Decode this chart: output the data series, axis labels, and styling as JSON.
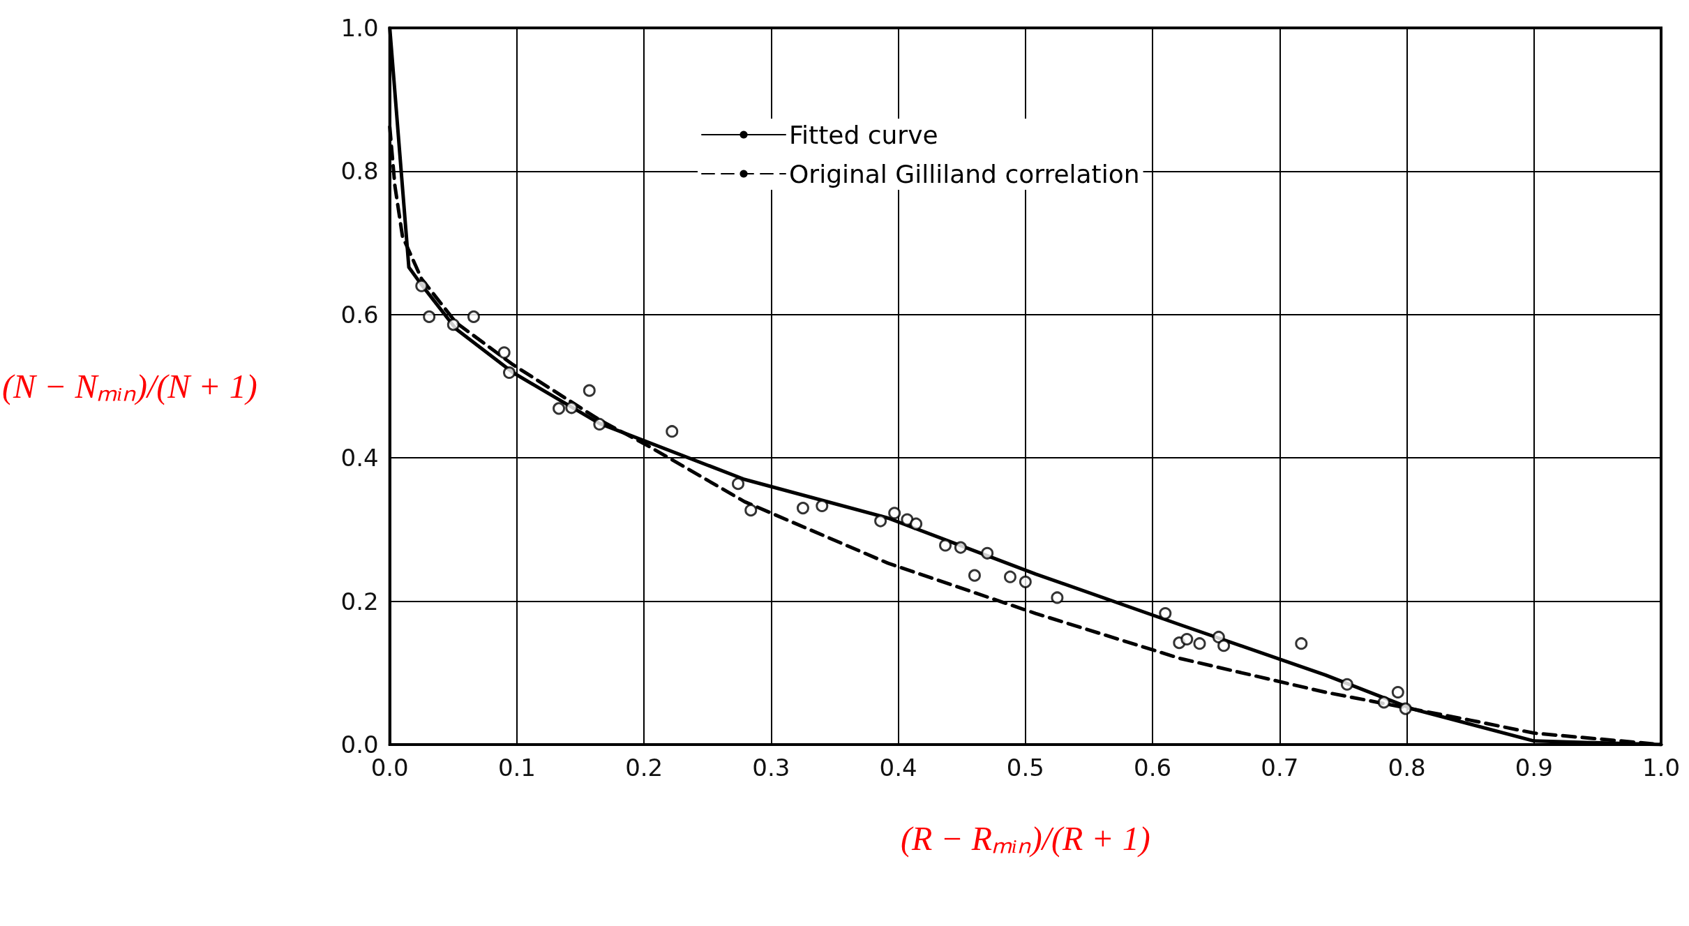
{
  "chart_data": {
    "type": "line",
    "xlabel": "(R − Rₘᵢₙ)/(R + 1)",
    "ylabel": "(N − Nₘᵢₙ)/(N + 1)",
    "xlim": [
      0,
      1
    ],
    "ylim": [
      0,
      1
    ],
    "xticks": [
      {
        "value": 0,
        "label": "0.0"
      },
      0.1,
      0.2,
      0.3,
      0.4,
      0.5,
      0.6,
      0.7,
      0.8,
      0.9,
      {
        "value": 1,
        "label": "1.0"
      }
    ],
    "yticks": [
      {
        "value": 0,
        "label": "0.0"
      },
      0.2,
      0.4,
      0.6,
      0.8,
      {
        "value": 1,
        "label": "1.0"
      }
    ],
    "grid": true,
    "legend": "top",
    "series": [
      {
        "name": "Fitted curve",
        "type": "line",
        "color": "#000000",
        "line_style": "solid",
        "marker": "none",
        "x": [
          0,
          0.015,
          0.024,
          0.052,
          0.097,
          0.165,
          0.279,
          0.392,
          0.508,
          0.622,
          0.736,
          0.804,
          0.9,
          1.0
        ],
        "values": [
          1.0,
          0.666,
          0.644,
          0.58,
          0.519,
          0.448,
          0.37,
          0.316,
          0.238,
          0.167,
          0.097,
          0.05,
          0.005,
          0.0
        ]
      },
      {
        "name": "Original Gilliland correlation",
        "type": "line",
        "color": "#000000",
        "line_style": "dashed",
        "marker": "none",
        "x": [
          0,
          0.004,
          0.01,
          0.025,
          0.052,
          0.097,
          0.165,
          0.203,
          0.279,
          0.392,
          0.508,
          0.622,
          0.736,
          0.85,
          0.9,
          1.0
        ],
        "values": [
          0.862,
          0.78,
          0.709,
          0.65,
          0.589,
          0.53,
          0.453,
          0.417,
          0.339,
          0.253,
          0.183,
          0.12,
          0.073,
          0.034,
          0.016,
          0.0
        ]
      },
      {
        "type": "scatter",
        "color": "#000000",
        "marker": "circle",
        "x": [
          0.025,
          0.031,
          0.05,
          0.066,
          0.09,
          0.094,
          0.133,
          0.143,
          0.157,
          0.165,
          0.222,
          0.274,
          0.284,
          0.325,
          0.34,
          0.386,
          0.397,
          0.407,
          0.414,
          0.437,
          0.449,
          0.47,
          0.46,
          0.488,
          0.5,
          0.525,
          0.61,
          0.621,
          0.627,
          0.637,
          0.652,
          0.656,
          0.717,
          0.753,
          0.782,
          0.793,
          0.799
        ],
        "values": [
          0.64,
          0.597,
          0.586,
          0.597,
          0.547,
          0.519,
          0.469,
          0.47,
          0.494,
          0.447,
          0.437,
          0.364,
          0.327,
          0.33,
          0.333,
          0.312,
          0.323,
          0.314,
          0.308,
          0.278,
          0.275,
          0.267,
          0.236,
          0.234,
          0.227,
          0.205,
          0.183,
          0.142,
          0.147,
          0.141,
          0.15,
          0.138,
          0.141,
          0.084,
          0.059,
          0.073,
          0.05
        ]
      }
    ]
  }
}
